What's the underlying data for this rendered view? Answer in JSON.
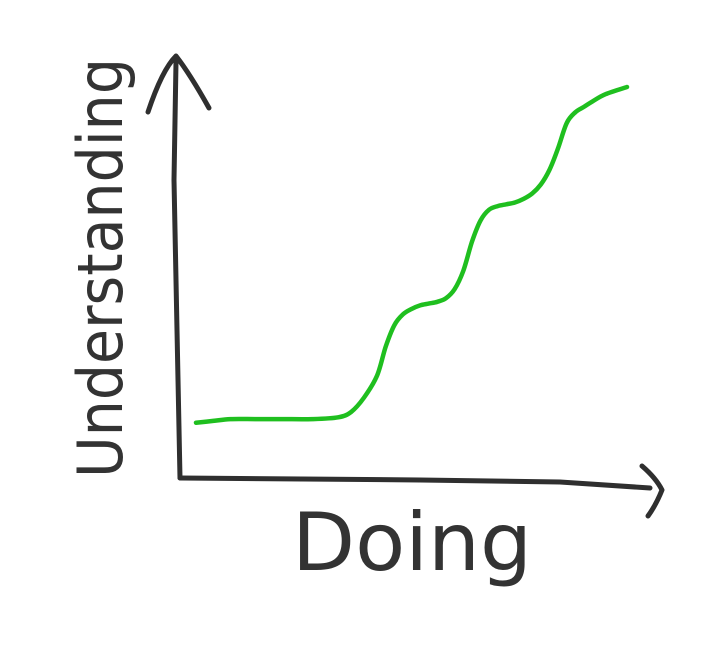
{
  "chart_data": {
    "type": "line",
    "title": "",
    "xlabel": "Doing",
    "ylabel": "Understanding",
    "xlim": [
      0,
      100
    ],
    "ylim": [
      0,
      100
    ],
    "grid": false,
    "legend": "none",
    "series": [
      {
        "color": "#1fbf1f",
        "x": [
          0,
          4,
          8,
          14,
          20,
          27,
          33,
          36,
          39,
          42,
          44,
          46,
          48,
          50,
          52,
          54,
          56,
          58,
          60,
          62,
          64,
          66,
          68,
          70,
          72,
          74,
          76,
          78,
          80,
          82,
          84,
          86,
          88,
          90,
          92,
          95,
          100
        ],
        "y": [
          7,
          7.5,
          8,
          8,
          8,
          8,
          8.5,
          10,
          14,
          20,
          28,
          34,
          37,
          38.5,
          39.5,
          40,
          40.5,
          41.5,
          44,
          49,
          57,
          63,
          66,
          67,
          67.5,
          68,
          69,
          70.5,
          73,
          77,
          83,
          90,
          93,
          94.5,
          96,
          98,
          100
        ]
      }
    ]
  },
  "colors": {
    "axis": "#2f2f2f",
    "curve": "#1fbf1f",
    "label": "#333333",
    "background": "#ffffff"
  }
}
